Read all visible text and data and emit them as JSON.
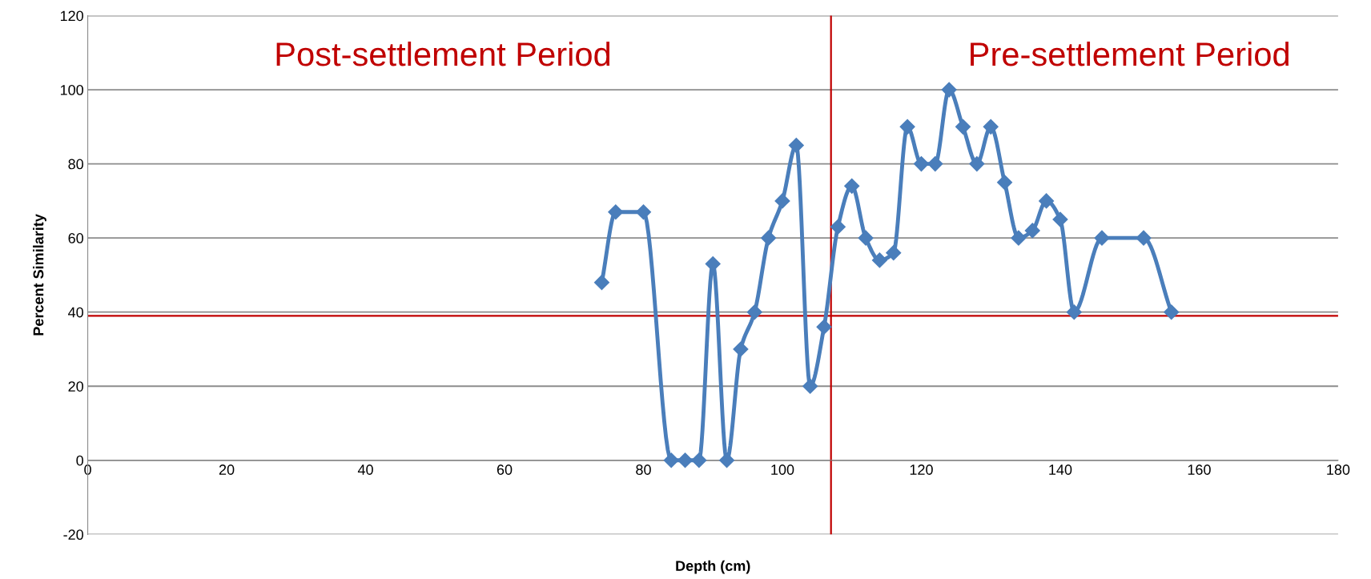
{
  "chart_data": {
    "type": "line",
    "xlabel": "Depth (cm)",
    "ylabel": "Percent Similarity",
    "x": [
      74,
      76,
      80,
      84,
      86,
      88,
      90,
      92,
      94,
      96,
      98,
      100,
      102,
      104,
      106,
      108,
      110,
      112,
      114,
      116,
      118,
      120,
      122,
      124,
      126,
      128,
      130,
      132,
      134,
      136,
      138,
      140,
      142,
      146,
      152,
      156
    ],
    "series": [
      {
        "color": "#4a7ebb",
        "values": [
          48,
          67,
          67,
          0,
          0,
          0,
          53,
          0,
          30,
          40,
          60,
          70,
          85,
          20,
          36,
          63,
          74,
          60,
          54,
          56,
          90,
          80,
          80,
          100,
          90,
          80,
          90,
          75,
          60,
          62,
          70,
          65,
          40,
          60,
          60,
          40
        ]
      }
    ],
    "xlim": [
      0,
      180
    ],
    "xticks": [
      0,
      20,
      40,
      60,
      80,
      100,
      120,
      140,
      160,
      180
    ],
    "ylim": [
      -20,
      120
    ],
    "yticks": [
      -20,
      0,
      20,
      40,
      60,
      80,
      100,
      120
    ],
    "grid": "y",
    "marker": "diamond",
    "line_style": "solid",
    "legend": false,
    "ref_lines": [
      {
        "axis": "y",
        "value": 39,
        "color": "#c00000"
      },
      {
        "axis": "x",
        "value": 107,
        "color": "#c00000"
      }
    ],
    "annotations": [
      "Post-settlement Period",
      "Pre-settlement Period"
    ]
  }
}
